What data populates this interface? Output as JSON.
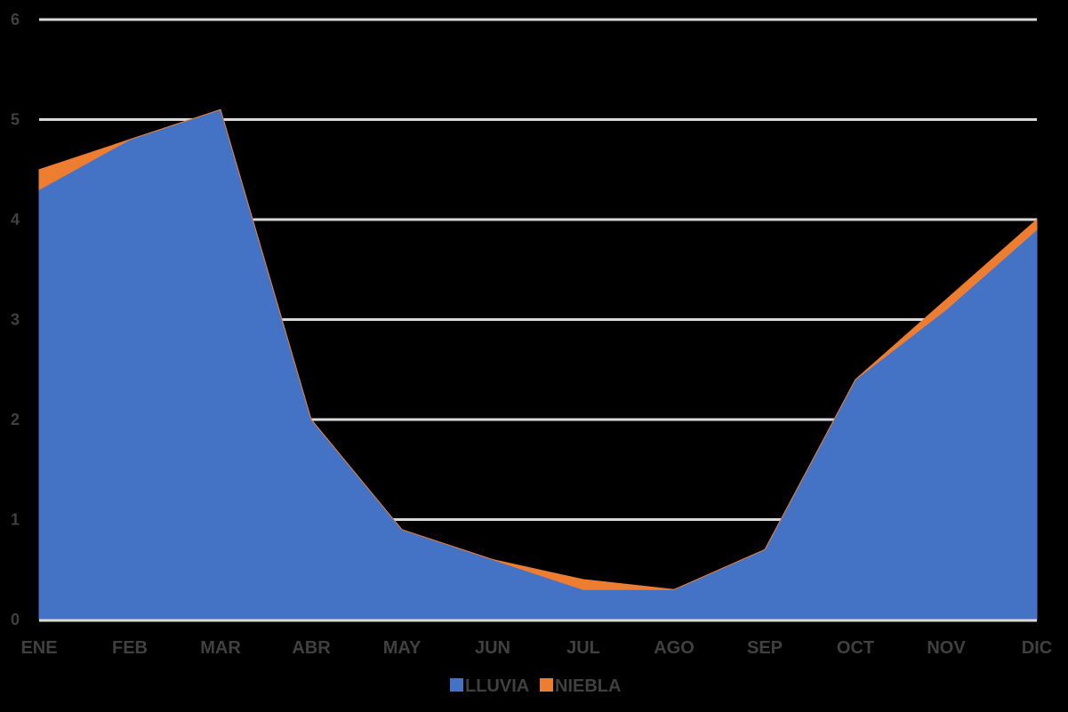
{
  "chart_data": {
    "type": "area",
    "categories": [
      "ENE",
      "FEB",
      "MAR",
      "ABR",
      "MAY",
      "JUN",
      "JUL",
      "AGO",
      "SEP",
      "OCT",
      "NOV",
      "DIC"
    ],
    "series": [
      {
        "name": "LLUVIA",
        "color": "#4472C4",
        "values": [
          4.3,
          4.8,
          5.1,
          2.0,
          0.9,
          0.6,
          0.3,
          0.3,
          0.7,
          2.4,
          3.1,
          3.9
        ]
      },
      {
        "name": "NIEBLA",
        "color": "#ED7D31",
        "values": [
          0.2,
          0.0,
          0.0,
          0.0,
          0.0,
          0.0,
          0.1,
          0.0,
          0.0,
          0.0,
          0.1,
          0.1
        ]
      }
    ],
    "y_ticks": [
      "0",
      "1",
      "2",
      "3",
      "4",
      "5",
      "6"
    ],
    "ylim": [
      0,
      6
    ],
    "grid": true,
    "legend": "bottom",
    "title": "",
    "xlabel": "",
    "ylabel": ""
  }
}
